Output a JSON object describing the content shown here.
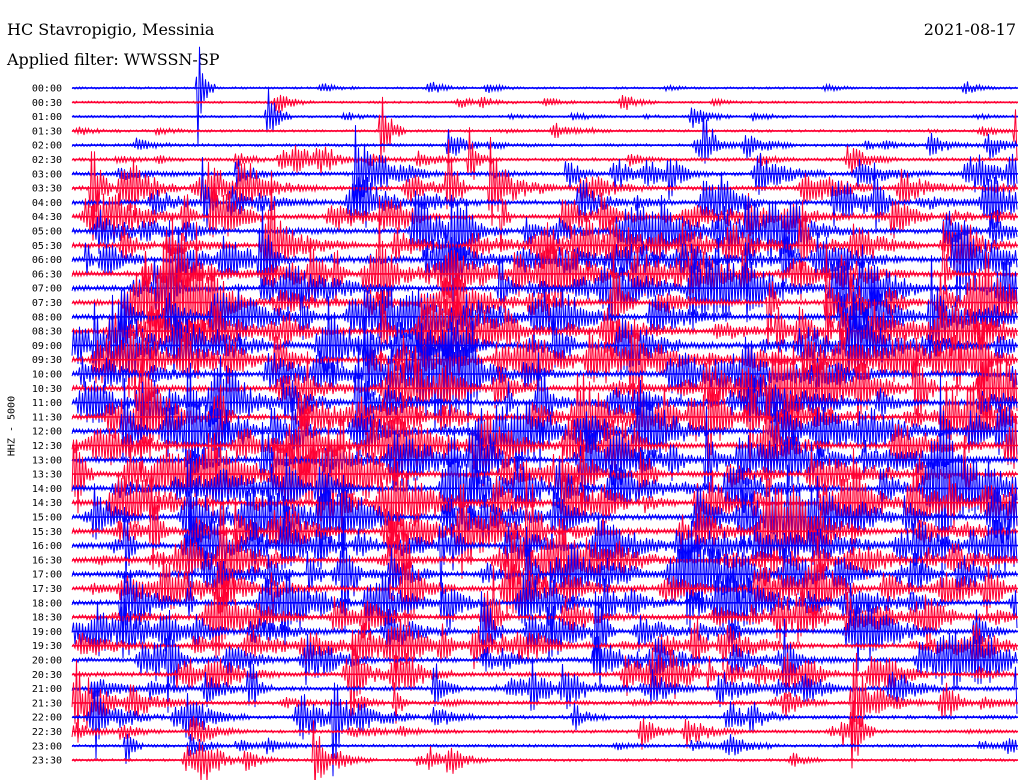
{
  "header": {
    "station": "HC Stavropigio, Messinia",
    "filter": "Applied filter: WWSSN-SP",
    "date": "2021-08-17",
    "channel": "HHZ - 5000"
  },
  "colors": {
    "blue": "#0000ff",
    "red": "#ff0033",
    "background": "#ffffff",
    "text": "#000000"
  },
  "chart_data": {
    "type": "line",
    "title": "HC Stavropigio, Messinia",
    "subtitle": "Applied filter: WWSSN-SP",
    "date": "2021-08-17",
    "ylabel": "HHZ - 5000",
    "categories": [
      "00:00",
      "00:30",
      "01:00",
      "01:30",
      "02:00",
      "02:30",
      "03:00",
      "03:30",
      "04:00",
      "04:30",
      "05:00",
      "05:30",
      "06:00",
      "06:30",
      "07:00",
      "07:30",
      "08:00",
      "08:30",
      "09:00",
      "09:30",
      "10:00",
      "10:30",
      "11:00",
      "11:30",
      "12:00",
      "12:30",
      "13:00",
      "13:30",
      "14:00",
      "14:30",
      "15:00",
      "15:30",
      "16:00",
      "16:30",
      "17:00",
      "17:30",
      "18:00",
      "18:30",
      "19:00",
      "19:30",
      "20:00",
      "20:30",
      "21:00",
      "21:30",
      "22:00",
      "22:30",
      "23:00",
      "23:30"
    ],
    "series_colors": [
      "#0000ff",
      "#ff0033"
    ],
    "relative_activity": [
      0.12,
      0.14,
      0.16,
      0.2,
      0.3,
      0.38,
      0.55,
      0.6,
      0.7,
      0.72,
      0.78,
      0.8,
      0.85,
      0.85,
      0.88,
      0.9,
      0.9,
      0.9,
      0.92,
      0.9,
      0.92,
      0.92,
      0.9,
      0.9,
      0.9,
      0.9,
      0.92,
      0.92,
      0.9,
      0.9,
      0.9,
      0.88,
      0.88,
      0.85,
      0.82,
      0.8,
      0.78,
      0.75,
      0.72,
      0.7,
      0.68,
      0.62,
      0.58,
      0.5,
      0.42,
      0.36,
      0.3,
      0.26
    ],
    "grid": false
  }
}
